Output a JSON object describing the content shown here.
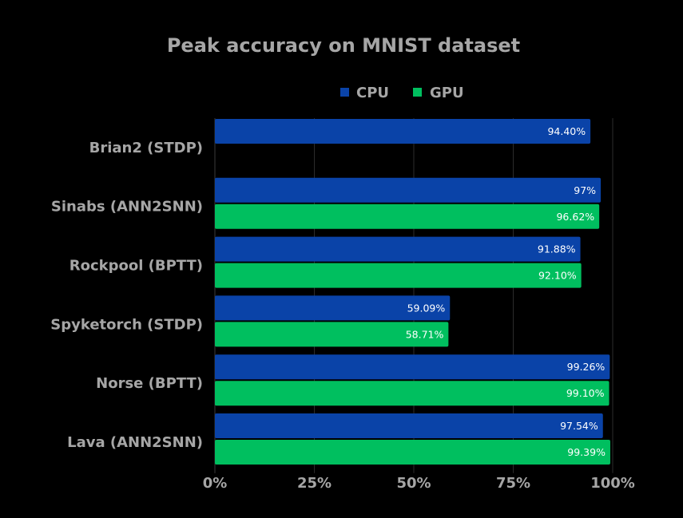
{
  "chart_data": {
    "type": "bar",
    "orientation": "horizontal",
    "title": "Peak accuracy on MNIST dataset",
    "categories": [
      "Brian2 (STDP)",
      "Sinabs (ANN2SNN)",
      "Rockpool (BPTT)",
      "Spyketorch (STDP)",
      "Norse (BPTT)",
      "Lava (ANN2SNN)"
    ],
    "series": [
      {
        "name": "CPU",
        "color": "#0a43a8",
        "values": [
          94.4,
          97,
          91.88,
          59.09,
          99.26,
          97.54
        ],
        "labels": [
          "94.40%",
          "97%",
          "91.88%",
          "59.09%",
          "99.26%",
          "97.54%"
        ]
      },
      {
        "name": "GPU",
        "color": "#00bf5f",
        "values": [
          null,
          96.62,
          92.1,
          58.71,
          99.1,
          99.39
        ],
        "labels": [
          "",
          "96.62%",
          "92.10%",
          "58.71%",
          "99.10%",
          "99.39%"
        ]
      }
    ],
    "xlim": [
      0,
      100
    ],
    "xticks": [
      "0%",
      "25%",
      "50%",
      "75%",
      "100%"
    ],
    "xtick_values": [
      0,
      25,
      50,
      75,
      100
    ],
    "grid": true,
    "legend_position": "top",
    "xlabel": "",
    "ylabel": ""
  }
}
